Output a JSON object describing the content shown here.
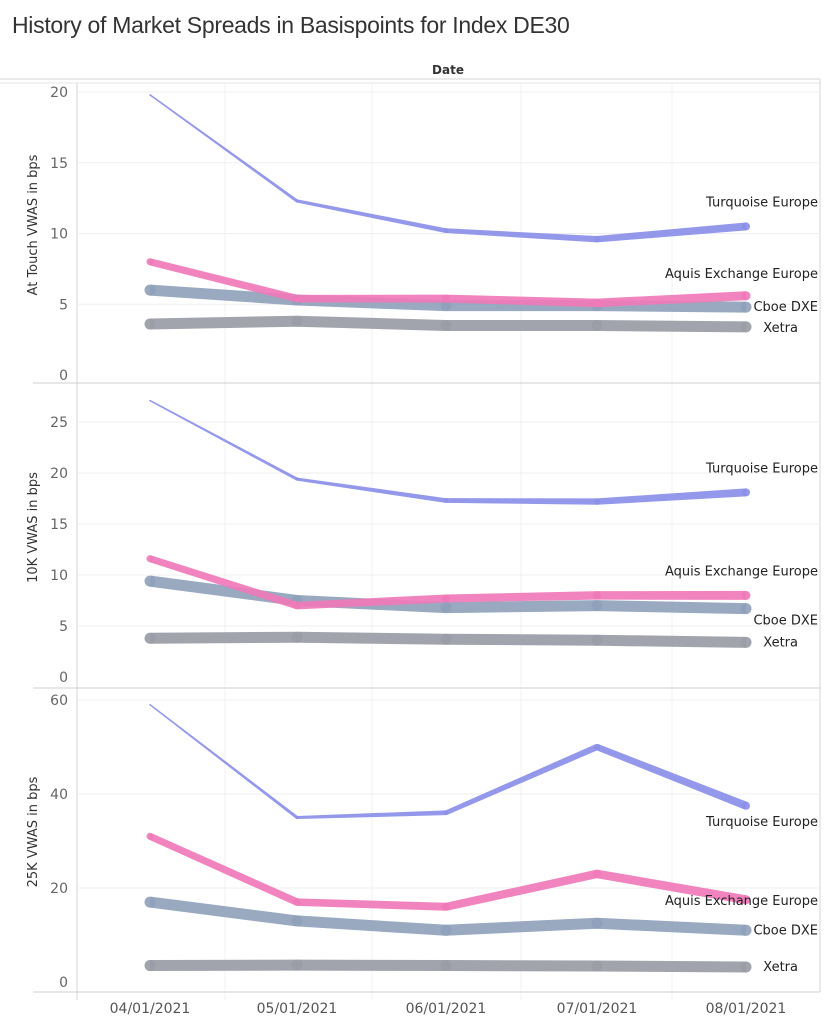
{
  "title": "History of Market Spreads in Basispoints for Index DE30",
  "chart_data": {
    "type": "line",
    "title": "History of Market Spreads in Basispoints for Index DE30",
    "column_header": "Date",
    "categories": [
      "04/01/2021",
      "05/01/2021",
      "06/01/2021",
      "07/01/2021",
      "08/01/2021"
    ],
    "series_colors": {
      "Turquoise Europe": "#8a8fe8",
      "Aquis Exchange Europe": "#f07ab8",
      "Cboe DXE": "#8fa2bb",
      "Xetra": "#9a9ca6"
    },
    "panels": [
      {
        "ylabel": "At Touch VWAS in bps",
        "ylim": [
          0,
          20
        ],
        "yticks": [
          0,
          5,
          10,
          15,
          20
        ],
        "grid": true,
        "series": [
          {
            "name": "Turquoise Europe",
            "values": [
              19.8,
              12.3,
              10.2,
              9.6,
              10.5
            ]
          },
          {
            "name": "Aquis Exchange Europe",
            "values": [
              8.0,
              5.4,
              5.4,
              5.1,
              5.6
            ]
          },
          {
            "name": "Cboe DXE",
            "values": [
              6.0,
              5.3,
              4.9,
              4.9,
              4.8
            ]
          },
          {
            "name": "Xetra",
            "values": [
              3.6,
              3.8,
              3.5,
              3.5,
              3.4
            ]
          }
        ]
      },
      {
        "ylabel": "10K VWAS in bps",
        "ylim": [
          0,
          25
        ],
        "yticks": [
          0,
          5,
          10,
          15,
          20,
          25
        ],
        "grid": true,
        "series": [
          {
            "name": "Turquoise Europe",
            "values": [
              27.1,
              19.4,
              17.3,
              17.2,
              18.1
            ]
          },
          {
            "name": "Aquis Exchange Europe",
            "values": [
              11.6,
              7.0,
              7.7,
              8.0,
              8.0
            ]
          },
          {
            "name": "Cboe DXE",
            "values": [
              9.4,
              7.5,
              6.8,
              7.0,
              6.7
            ]
          },
          {
            "name": "Xetra",
            "values": [
              3.8,
              3.9,
              3.7,
              3.6,
              3.4
            ]
          }
        ]
      },
      {
        "ylabel": "25K VWAS in bps",
        "ylim": [
          0,
          60
        ],
        "yticks": [
          0,
          20,
          40,
          60
        ],
        "grid": true,
        "series": [
          {
            "name": "Turquoise Europe",
            "values": [
              59,
              35,
              36,
              50,
              37.5
            ]
          },
          {
            "name": "Aquis Exchange Europe",
            "values": [
              31,
              17,
              16,
              23,
              17.5
            ]
          },
          {
            "name": "Cboe DXE",
            "values": [
              17,
              13,
              11,
              12.5,
              11
            ]
          },
          {
            "name": "Xetra",
            "values": [
              3.5,
              3.6,
              3.5,
              3.4,
              3.2
            ]
          }
        ]
      }
    ]
  }
}
